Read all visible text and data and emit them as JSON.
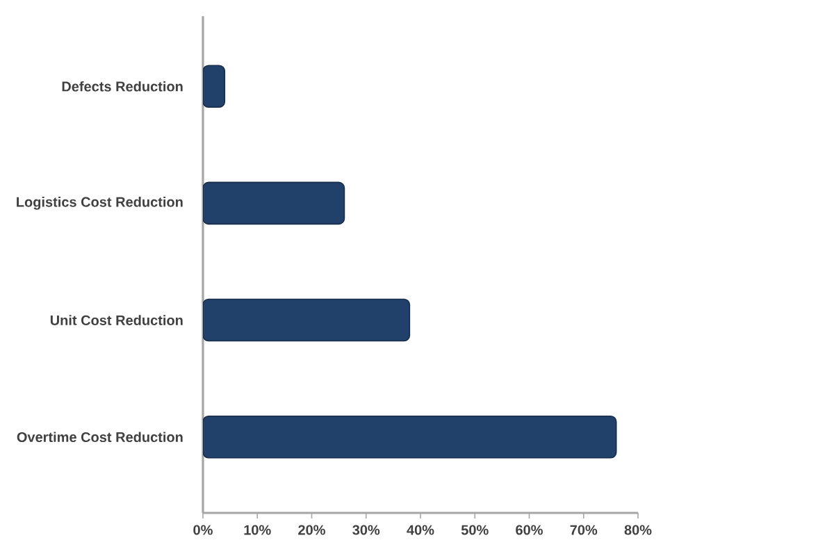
{
  "chart_data": {
    "type": "bar",
    "orientation": "horizontal",
    "categories": [
      "Defects Reduction",
      "Logistics Cost Reduction",
      "Unit Cost Reduction",
      "Overtime Cost Reduction"
    ],
    "values": [
      4,
      26,
      38,
      76
    ],
    "color": "#21406a",
    "xlim": [
      0,
      80
    ],
    "xticks": [
      {
        "value": 0,
        "label": "0%"
      },
      {
        "value": 10,
        "label": "10%"
      },
      {
        "value": 20,
        "label": "20%"
      },
      {
        "value": 30,
        "label": "30%"
      },
      {
        "value": 40,
        "label": "40%"
      },
      {
        "value": 50,
        "label": "50%"
      },
      {
        "value": 60,
        "label": "60%"
      },
      {
        "value": 70,
        "label": "70%"
      },
      {
        "value": 80,
        "label": "80%"
      }
    ]
  }
}
